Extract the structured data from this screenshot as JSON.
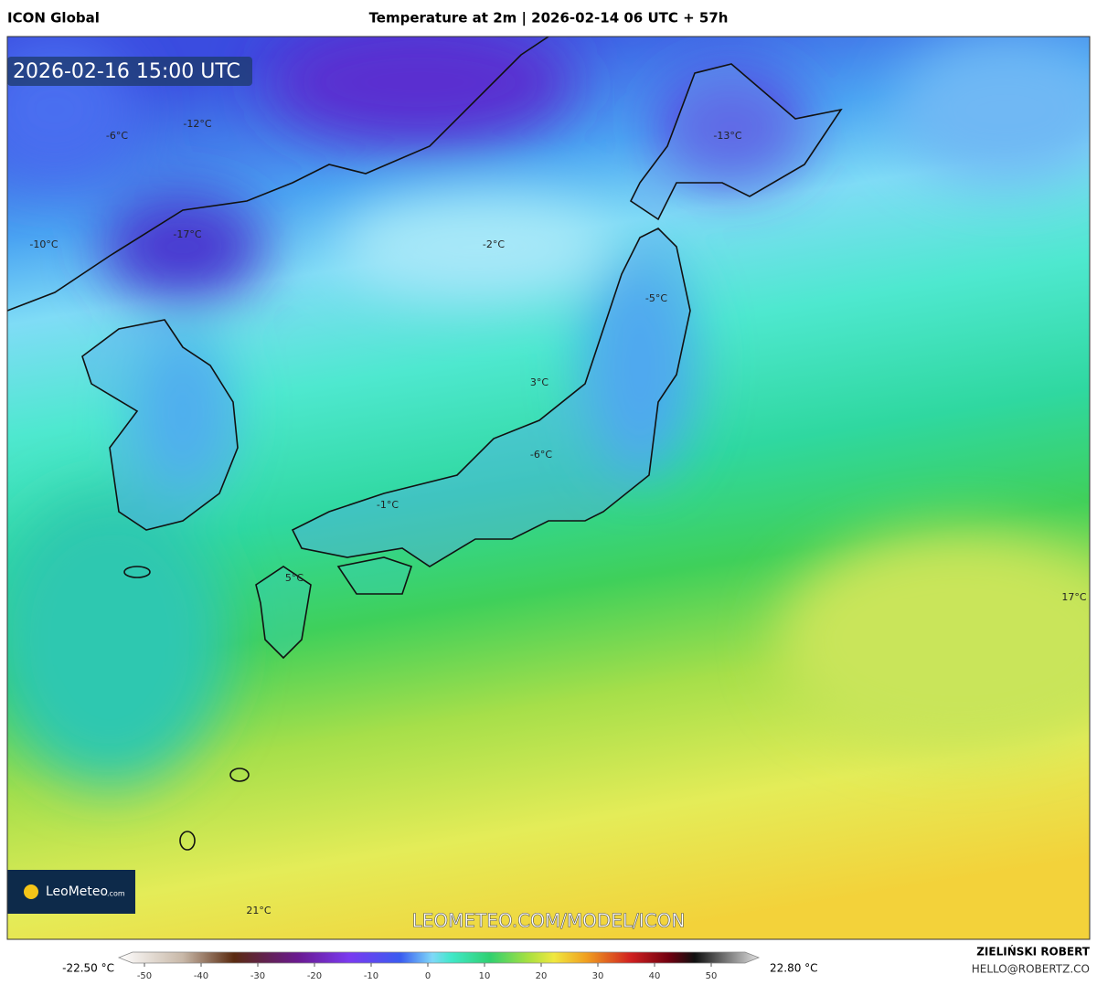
{
  "header": {
    "model": "ICON Global",
    "title": "Temperature at 2m | 2026-02-14 06 UTC + 57h"
  },
  "map": {
    "timestamp": "2026-02-16 15:00 UTC",
    "labels": [
      "-6°C",
      "-12°C",
      "-17°C",
      "-10°C",
      "-2°C",
      "-13°C",
      "-5°C",
      "3°C",
      "-6°C",
      "-1°C",
      "5°C",
      "17°C",
      "21°C"
    ],
    "watermark": "LEOMETEO.COM/MODEL/ICON",
    "logo": {
      "name": "LeoMeteo",
      "suffix": ".com"
    }
  },
  "legend": {
    "min_label": "-22.50 °C",
    "max_label": "22.80 °C",
    "ticks": [
      -50,
      -40,
      -30,
      -20,
      -10,
      0,
      10,
      20,
      30,
      40,
      50
    ]
  },
  "credit": {
    "author": "ZIELIŃSKI ROBERT",
    "contact": "HELLO@ROBERTZ.CO"
  }
}
